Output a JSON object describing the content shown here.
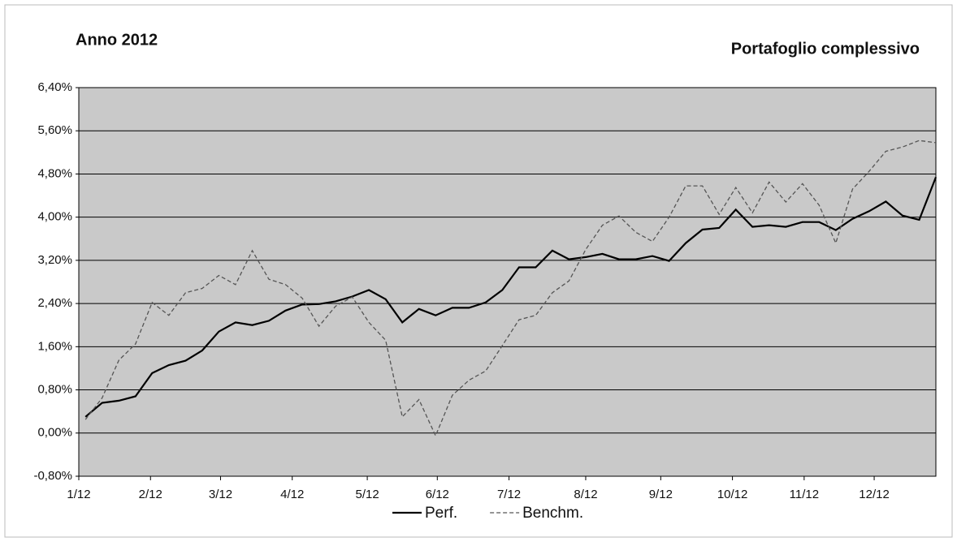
{
  "chart_data": {
    "type": "line",
    "title": "Anno 2012",
    "subtitle": "Portafoglio complessivo",
    "x": [
      0,
      1,
      2,
      3,
      4,
      5,
      6,
      7,
      8,
      9,
      10,
      11,
      12,
      13,
      14,
      15,
      16,
      17,
      18,
      19,
      20,
      21,
      22,
      23,
      24,
      25,
      26,
      27,
      28,
      29,
      30,
      31,
      32,
      33,
      34,
      35,
      36,
      37,
      38,
      39,
      40,
      41,
      42,
      43,
      44,
      45,
      46,
      47,
      48,
      49,
      50,
      51
    ],
    "xlim": [
      -0.4,
      51
    ],
    "xticks": [
      {
        "value": -0.4,
        "label": "1/12"
      },
      {
        "value": 3.9,
        "label": "2/12"
      },
      {
        "value": 8.1,
        "label": "3/12"
      },
      {
        "value": 12.4,
        "label": "4/12"
      },
      {
        "value": 16.9,
        "label": "5/12"
      },
      {
        "value": 21.1,
        "label": "6/12"
      },
      {
        "value": 25.4,
        "label": "7/12"
      },
      {
        "value": 30.0,
        "label": "8/12"
      },
      {
        "value": 34.5,
        "label": "9/12"
      },
      {
        "value": 38.8,
        "label": "10/12"
      },
      {
        "value": 43.1,
        "label": "11/12"
      },
      {
        "value": 47.3,
        "label": "12/12"
      }
    ],
    "ylim": [
      -0.8,
      6.4
    ],
    "yticks": [
      {
        "value": -0.8,
        "label": "-0,80%"
      },
      {
        "value": 0,
        "label": "0,00%"
      },
      {
        "value": 0.8,
        "label": "0,80%"
      },
      {
        "value": 1.6,
        "label": "1,60%"
      },
      {
        "value": 2.4,
        "label": "2,40%"
      },
      {
        "value": 3.2,
        "label": "3,20%"
      },
      {
        "value": 4.0,
        "label": "4,00%"
      },
      {
        "value": 4.8,
        "label": "4,80%"
      },
      {
        "value": 5.6,
        "label": "5,60%"
      },
      {
        "value": 6.4,
        "label": "6,40%"
      }
    ],
    "grid": true,
    "legend": "bottom",
    "series": [
      {
        "name": "Perf.",
        "color": "#000000",
        "dash": "solid",
        "values": [
          0.3,
          0.56,
          0.6,
          0.68,
          1.11,
          1.26,
          1.34,
          1.53,
          1.88,
          2.05,
          2.0,
          2.08,
          2.27,
          2.38,
          2.39,
          2.44,
          2.53,
          2.65,
          2.48,
          2.05,
          2.3,
          2.18,
          2.32,
          2.32,
          2.42,
          2.65,
          3.07,
          3.07,
          3.38,
          3.22,
          3.26,
          3.32,
          3.22,
          3.22,
          3.28,
          3.19,
          3.52,
          3.77,
          3.8,
          4.14,
          3.82,
          3.85,
          3.82,
          3.91,
          3.91,
          3.76,
          3.97,
          4.11,
          4.29,
          4.03,
          3.95,
          4.74
        ]
      },
      {
        "name": "Benchm.",
        "color": "#555555",
        "dash": "dashed",
        "values": [
          0.25,
          0.65,
          1.35,
          1.65,
          2.42,
          2.18,
          2.6,
          2.68,
          2.92,
          2.75,
          3.38,
          2.85,
          2.75,
          2.5,
          1.98,
          2.35,
          2.52,
          2.05,
          1.72,
          0.3,
          0.62,
          -0.05,
          0.7,
          0.98,
          1.15,
          1.62,
          2.1,
          2.18,
          2.6,
          2.82,
          3.4,
          3.85,
          4.02,
          3.72,
          3.55,
          4.0,
          4.58,
          4.58,
          4.05,
          4.55,
          4.08,
          4.65,
          4.28,
          4.62,
          4.22,
          3.52,
          4.52,
          4.85,
          5.22,
          5.3,
          5.42,
          5.38
        ]
      }
    ]
  }
}
